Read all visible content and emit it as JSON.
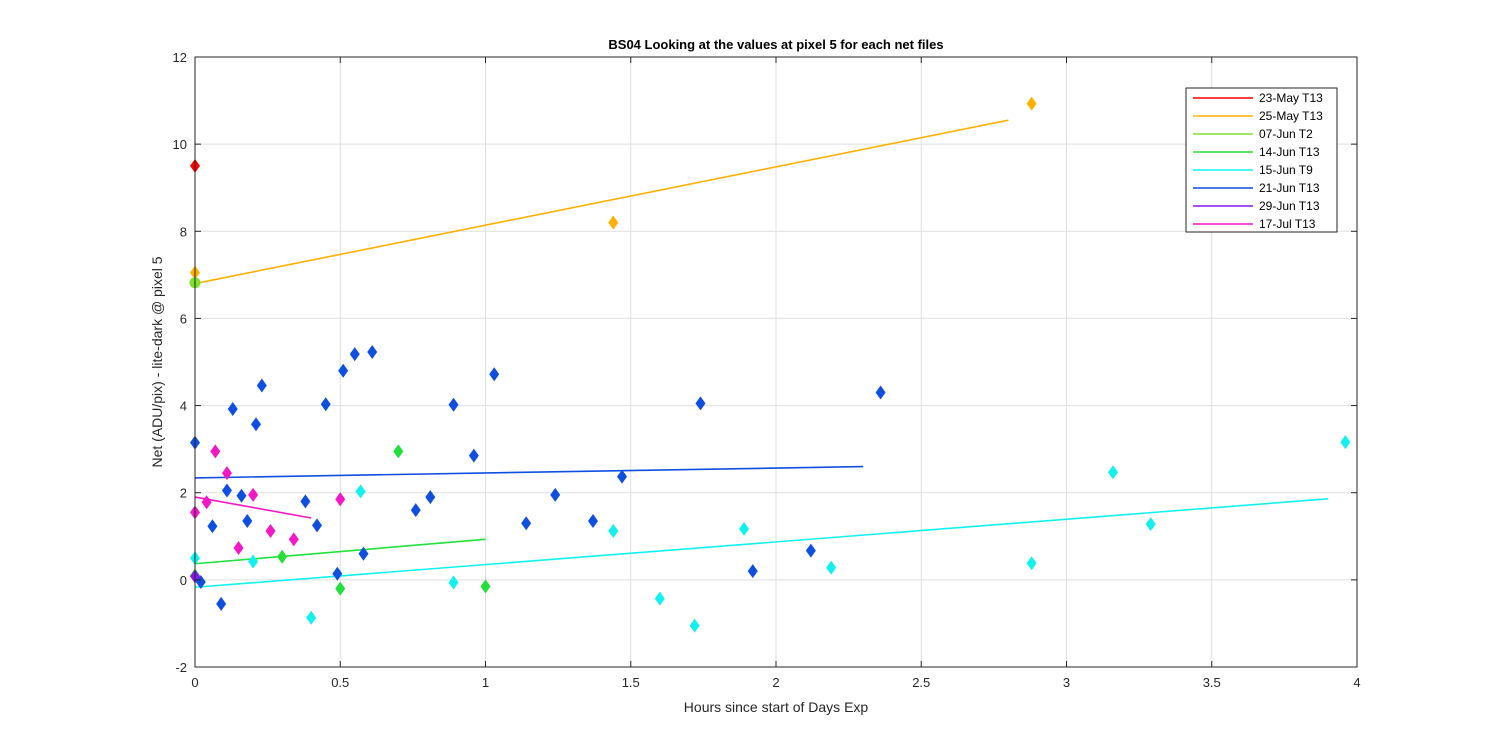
{
  "chart_data": {
    "type": "scatter",
    "title": "BS04  Looking at the values at pixel 5 for each net files",
    "xlabel": "Hours since start of Days Exp",
    "ylabel": "Net (ADU/pix) - lite-dark @ pixel 5",
    "xlim": [
      0,
      4
    ],
    "ylim": [
      -2,
      12
    ],
    "xticks": [
      0,
      0.5,
      1,
      1.5,
      2,
      2.5,
      3,
      3.5,
      4
    ],
    "xtick_labels": [
      "0",
      "0.5",
      "1",
      "1.5",
      "2",
      "2.5",
      "3",
      "3.5",
      "4"
    ],
    "yticks": [
      -2,
      0,
      2,
      4,
      6,
      8,
      10,
      12
    ],
    "ytick_labels": [
      "-2",
      "0",
      "2",
      "4",
      "6",
      "8",
      "10",
      "12"
    ],
    "grid": true,
    "legend_position": "top-right",
    "series": [
      {
        "name": "23-May T13",
        "color": "#ff0000",
        "marker": "diamond",
        "points": [
          [
            0.0,
            9.5
          ]
        ],
        "fit": null
      },
      {
        "name": "25-May T13",
        "color": "#ffb000",
        "marker": "diamond",
        "points": [
          [
            0.0,
            7.05
          ],
          [
            1.44,
            8.2
          ],
          [
            2.88,
            10.93
          ]
        ],
        "fit": [
          [
            0.0,
            6.8
          ],
          [
            2.8,
            10.55
          ]
        ]
      },
      {
        "name": "07-Jun T2",
        "color": "#7fe02a",
        "marker": "circle",
        "points": [
          [
            0.0,
            6.82
          ]
        ],
        "fit": null
      },
      {
        "name": "14-Jun T13",
        "color": "#22e03a",
        "marker": "diamond",
        "points": [
          [
            0.0,
            0.1
          ],
          [
            0.3,
            0.53
          ],
          [
            0.5,
            -0.2
          ],
          [
            0.7,
            2.95
          ],
          [
            1.0,
            -0.15
          ]
        ],
        "fit": [
          [
            0.0,
            0.37
          ],
          [
            1.0,
            0.93
          ]
        ]
      },
      {
        "name": "15-Jun T9",
        "color": "#11f2f0",
        "marker": "diamond",
        "points": [
          [
            0.0,
            0.5
          ],
          [
            0.2,
            0.42
          ],
          [
            0.4,
            -0.87
          ],
          [
            0.57,
            2.03
          ],
          [
            0.89,
            -0.06
          ],
          [
            1.44,
            1.12
          ],
          [
            1.6,
            -0.43
          ],
          [
            1.72,
            -1.05
          ],
          [
            1.89,
            1.17
          ],
          [
            2.19,
            0.28
          ],
          [
            2.88,
            0.38
          ],
          [
            3.16,
            2.47
          ],
          [
            3.29,
            1.28
          ],
          [
            3.96,
            3.16
          ]
        ],
        "fit": [
          [
            0.0,
            -0.17
          ],
          [
            3.9,
            1.86
          ]
        ]
      },
      {
        "name": "21-Jun T13",
        "color": "#0f4fe0",
        "marker": "diamond",
        "points": [
          [
            0.0,
            3.15
          ],
          [
            0.02,
            -0.05
          ],
          [
            0.06,
            1.23
          ],
          [
            0.09,
            -0.55
          ],
          [
            0.11,
            2.05
          ],
          [
            0.13,
            3.92
          ],
          [
            0.16,
            1.93
          ],
          [
            0.18,
            1.35
          ],
          [
            0.21,
            3.57
          ],
          [
            0.23,
            4.46
          ],
          [
            0.38,
            1.8
          ],
          [
            0.42,
            1.25
          ],
          [
            0.45,
            4.03
          ],
          [
            0.49,
            0.14
          ],
          [
            0.51,
            4.8
          ],
          [
            0.55,
            5.18
          ],
          [
            0.58,
            0.6
          ],
          [
            0.61,
            5.23
          ],
          [
            0.76,
            1.6
          ],
          [
            0.81,
            1.9
          ],
          [
            0.89,
            4.02
          ],
          [
            0.96,
            2.85
          ],
          [
            1.03,
            4.72
          ],
          [
            1.14,
            1.3
          ],
          [
            1.24,
            1.95
          ],
          [
            1.37,
            1.35
          ],
          [
            1.47,
            2.37
          ],
          [
            1.74,
            4.05
          ],
          [
            1.92,
            0.2
          ],
          [
            2.12,
            0.67
          ],
          [
            2.36,
            4.3
          ]
        ],
        "fit": [
          [
            0.0,
            2.34
          ],
          [
            2.3,
            2.6
          ]
        ]
      },
      {
        "name": "29-Jun T13",
        "color": "#8a17f2",
        "marker": "diamond",
        "points": [
          [
            0.0,
            0.08
          ]
        ],
        "fit": null
      },
      {
        "name": "17-Jul T13",
        "color": "#f417c5",
        "marker": "diamond",
        "points": [
          [
            0.0,
            1.55
          ],
          [
            0.04,
            1.78
          ],
          [
            0.07,
            2.95
          ],
          [
            0.11,
            2.45
          ],
          [
            0.15,
            0.73
          ],
          [
            0.2,
            1.95
          ],
          [
            0.26,
            1.12
          ],
          [
            0.34,
            0.93
          ],
          [
            0.5,
            1.85
          ]
        ],
        "fit": [
          [
            0.0,
            1.9
          ],
          [
            0.4,
            1.42
          ]
        ]
      }
    ]
  }
}
